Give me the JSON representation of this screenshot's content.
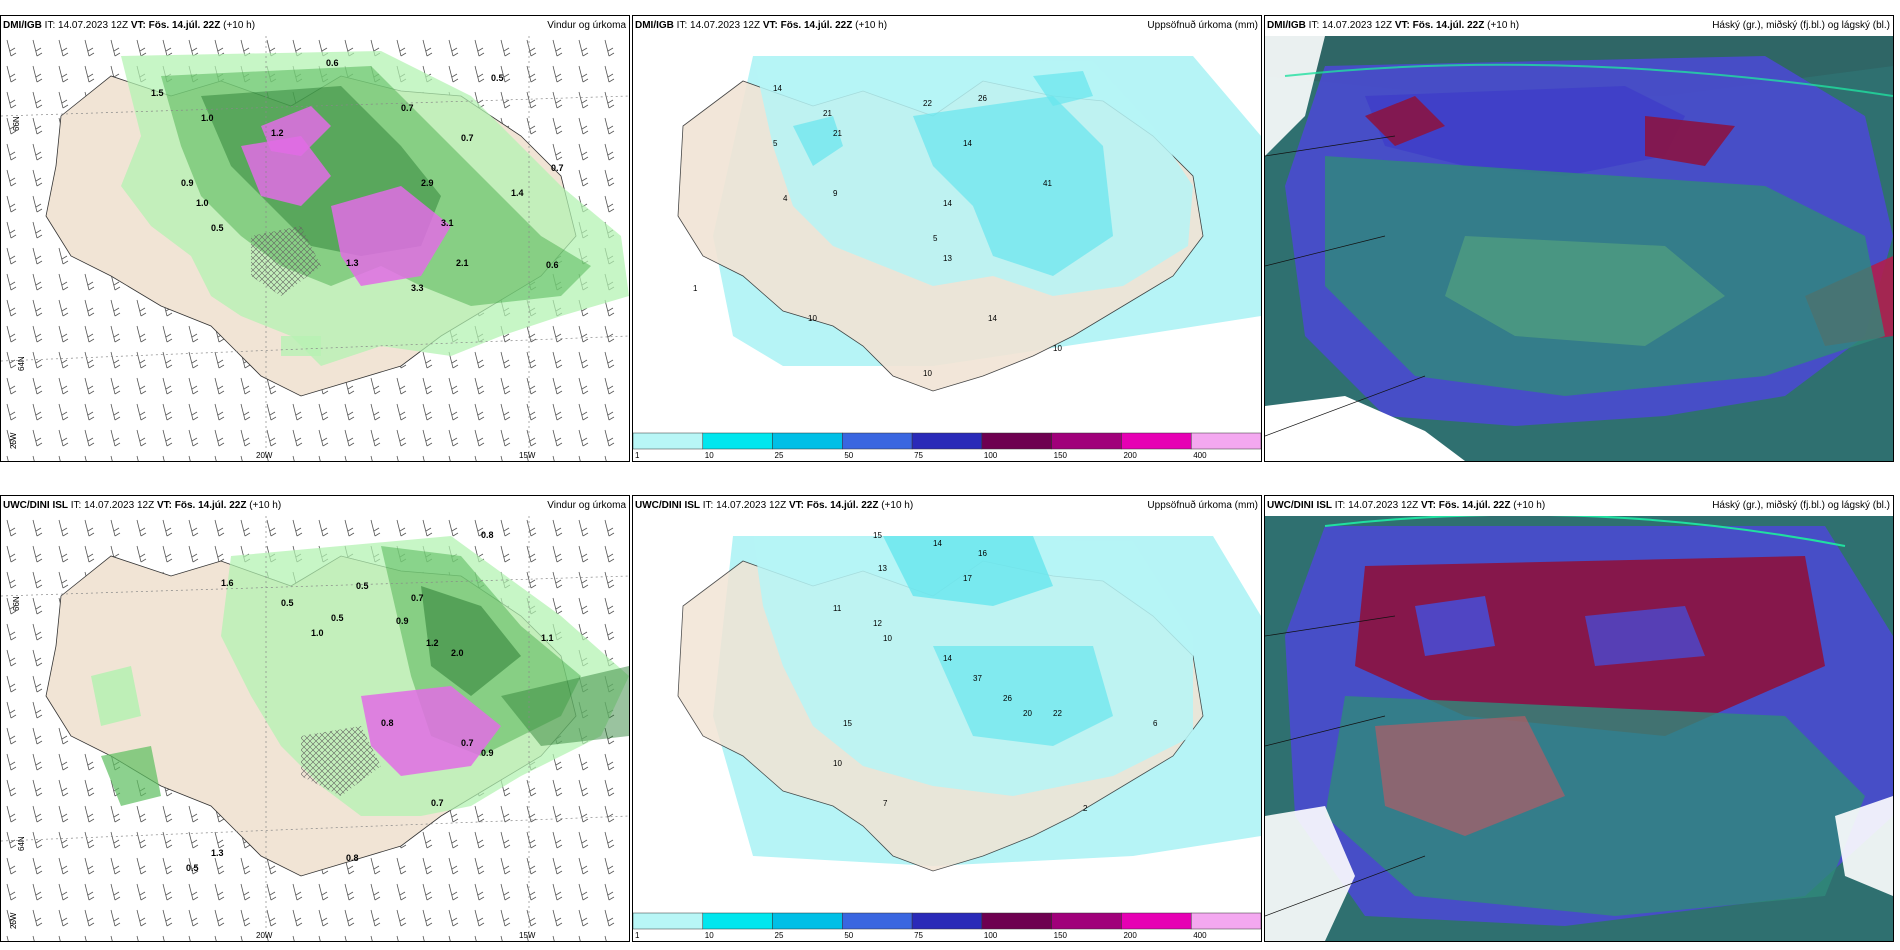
{
  "header_common": {
    "it": "IT: 14.07.2023 12Z",
    "vt": "VT: Fös. 14.júl. 22Z",
    "lead": "(+10 h)"
  },
  "rows": [
    {
      "model": "DMI/IGB"
    },
    {
      "model": "UWC/DINI ISL"
    }
  ],
  "titles": {
    "wind": "Vindur og úrkoma",
    "precip": "Uppsöfnuð úrkoma (mm)",
    "cloud": "Háský (gr.), miðský (fj.bl.) og lágský (bl.)"
  },
  "axes": {
    "lat66": "66N",
    "lat64": "64N",
    "lat25w": "25W",
    "lon20": "20W",
    "lon15": "15W"
  },
  "precip_scale": {
    "labels": [
      "1",
      "10",
      "25",
      "50",
      "75",
      "100",
      "150",
      "200",
      "400"
    ],
    "colors": [
      "#b8f6f6",
      "#00e6ee",
      "#00bfe6",
      "#3a66e0",
      "#2a2ab8",
      "#6e0050",
      "#a0007a",
      "#e600b4",
      "#f4a8f0"
    ]
  },
  "colors": {
    "land": "#f1e4d5",
    "sea": "#ffffff",
    "precip_light": "#b2f2b0",
    "precip_mid": "#5fbf62",
    "precip_dark": "#1f7a2a",
    "magenta": "#e060e8",
    "cyan_light": "#b6f4f6",
    "cyan_mid": "#66e6ee",
    "cloud_blue": "#4a4ad0",
    "cloud_teal": "#2f8a7a",
    "cloud_red": "#8a1444"
  },
  "labels": {
    "p1": [
      "0.6",
      "1.5",
      "1.0",
      "1.2",
      "0.7",
      "0.5",
      "0.7",
      "0.9",
      "1.0",
      "0.5",
      "2.9",
      "3.1",
      "2.1",
      "3.3",
      "1.3",
      "0.6",
      "1.4",
      "0.7"
    ],
    "p2": [
      "14",
      "21",
      "5",
      "4",
      "9",
      "21",
      "22",
      "26",
      "14",
      "14",
      "41",
      "5",
      "13",
      "10",
      "14",
      "10",
      "10",
      "1"
    ],
    "p4": [
      "0.8",
      "0.5",
      "0.5",
      "0.7",
      "1.6",
      "1.0",
      "0.5",
      "0.9",
      "1.2",
      "2.0",
      "1.1",
      "0.9",
      "0.7",
      "0.8",
      "1.3",
      "0.7",
      "0.8",
      "0.5"
    ],
    "p5": [
      "15",
      "14",
      "16",
      "13",
      "17",
      "11",
      "12",
      "10",
      "14",
      "37",
      "26",
      "15",
      "22",
      "20",
      "10",
      "7",
      "2",
      "6"
    ]
  }
}
